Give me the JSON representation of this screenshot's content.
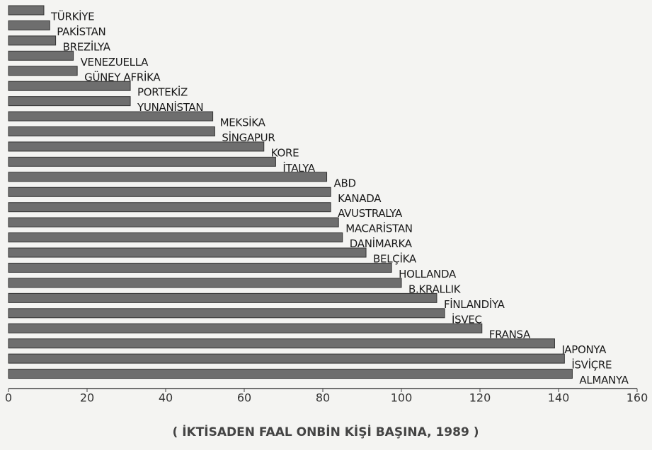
{
  "chart_data": {
    "type": "bar",
    "categories": [
      "TÜRKİYE",
      "PAKİSTAN",
      "BREZİLYA",
      "VENEZUELLA",
      "GÜNEY AFRİKA",
      "PORTEKİZ",
      "YUNANİSTAN",
      "MEKSİKA",
      "SİNGAPUR",
      "KORE",
      "İTALYA",
      "ABD",
      "KANADA",
      "AVUSTRALYA",
      "MACARİSTAN",
      "DANİMARKA",
      "BELÇİKA",
      "HOLLANDA",
      "B.KRALLIK",
      "FİNLANDİYA",
      "İSVEÇ",
      "FRANSA",
      "JAPONYA",
      "İSVİÇRE",
      "ALMANYA"
    ],
    "values": [
      9,
      10.5,
      12,
      16.5,
      17.5,
      31,
      31,
      52,
      52.5,
      65,
      68,
      81,
      82,
      82,
      84,
      85,
      91,
      97.5,
      100,
      109,
      111,
      120.5,
      139,
      141.5,
      143.5
    ],
    "color": "#6e6e6e",
    "xlim": [
      0,
      160
    ],
    "xticks": [
      0,
      20,
      40,
      60,
      80,
      100,
      120,
      140,
      160
    ],
    "xlabel": "( İKTİSADEN FAAL ONBİN KİŞİ BAŞINA, 1989 )"
  }
}
